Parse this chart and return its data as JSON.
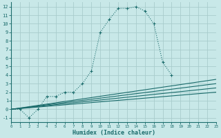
{
  "xlabel": "Humidex (Indice chaleur)",
  "bg_color": "#c8e8e8",
  "grid_color": "#a8cccc",
  "line_color": "#1a6b6b",
  "xlim": [
    0,
    23
  ],
  "ylim": [
    -1.5,
    12.5
  ],
  "xticks": [
    0,
    1,
    2,
    3,
    4,
    5,
    6,
    7,
    8,
    9,
    10,
    11,
    12,
    13,
    14,
    15,
    16,
    17,
    18,
    19,
    20,
    21,
    22,
    23
  ],
  "yticks": [
    -1,
    0,
    1,
    2,
    3,
    4,
    5,
    6,
    7,
    8,
    9,
    10,
    11,
    12
  ],
  "main_x": [
    0,
    1,
    2,
    3,
    4,
    5,
    6,
    7,
    8,
    9,
    10,
    11,
    12,
    13,
    14,
    15,
    16,
    17,
    18
  ],
  "main_y": [
    0,
    0,
    -1,
    0,
    1.5,
    1.5,
    2,
    2,
    3,
    4.5,
    9,
    10.5,
    11.8,
    11.8,
    12,
    11.5,
    10,
    5.5,
    4
  ],
  "line1_x": [
    0,
    23
  ],
  "line1_y": [
    0,
    3.5
  ],
  "line2_x": [
    0,
    23
  ],
  "line2_y": [
    0,
    3.0
  ],
  "line3_x": [
    0,
    23
  ],
  "line3_y": [
    0,
    2.5
  ],
  "line4_x": [
    0,
    23
  ],
  "line4_y": [
    0,
    2.0
  ]
}
